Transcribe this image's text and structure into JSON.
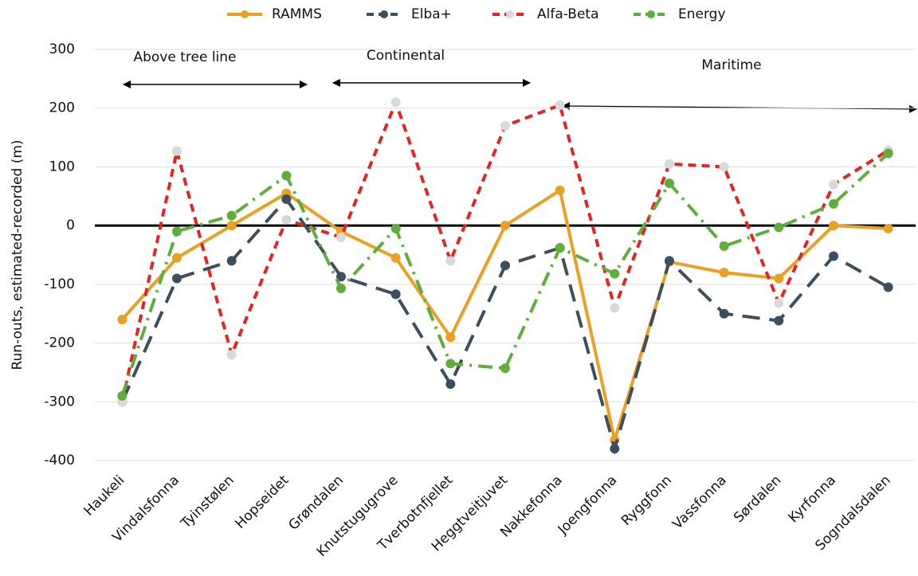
{
  "chart_data": {
    "type": "line",
    "y_label": "Run-outs, estimated-recorded (m)",
    "categories": [
      "Haukeli",
      "Vindalsfonna",
      "Tyinstølen",
      "Hopseidet",
      "Grøndalen",
      "Knutstugugrove",
      "Tverbotnfjellet",
      "Heggtveitjuvet",
      "Nakkefonna",
      "Joengfonna",
      "Ryggfonn",
      "Vassfonna",
      "Sørdalen",
      "Kyrfonna",
      "Sogndalsdalen"
    ],
    "series": [
      {
        "name": "RAMMS",
        "color": "#e8a025",
        "dash": "solid",
        "values": [
          -160,
          -55,
          0,
          55,
          -10,
          -55,
          -190,
          0,
          60,
          -365,
          -62,
          -80,
          -90,
          0,
          -5
        ]
      },
      {
        "name": "Elba+",
        "color": "#3d4f5c",
        "dash": "long",
        "values": [
          -300,
          -90,
          -60,
          45,
          -87,
          -117,
          -270,
          -68,
          -38,
          -380,
          -60,
          -150,
          -162,
          -52,
          -105
        ]
      },
      {
        "name": "Alfa-Beta",
        "color": "#e52421",
        "dash": "short",
        "values": [
          -300,
          127,
          -220,
          10,
          -20,
          210,
          -60,
          170,
          205,
          -140,
          105,
          100,
          -132,
          70,
          128
        ]
      },
      {
        "name": "Energy",
        "color": "#5fad3b",
        "dash": "dashdot",
        "values": [
          -290,
          -10,
          17,
          85,
          -107,
          -5,
          -235,
          -243,
          -38,
          -82,
          72,
          -35,
          -3,
          37,
          123
        ]
      }
    ],
    "annotations": [
      "Above tree line",
      "Continental",
      "Maritime"
    ],
    "ylim": [
      -400,
      300
    ],
    "yticks": [
      -400,
      -300,
      -200,
      -100,
      0,
      100,
      200,
      300
    ],
    "grid": true
  }
}
